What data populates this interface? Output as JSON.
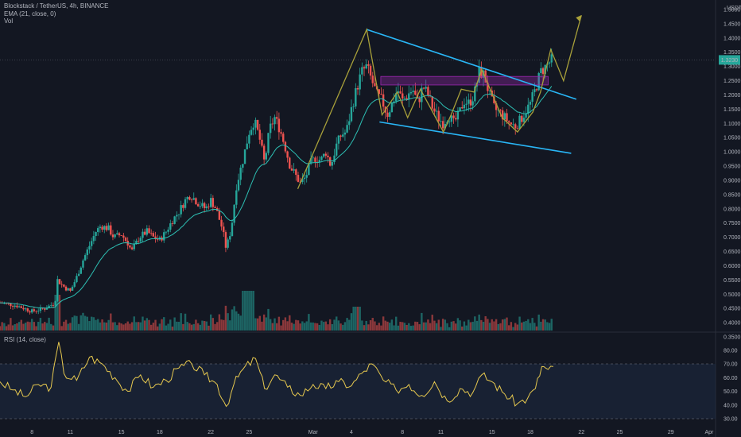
{
  "header": {
    "symbol_line": "Blockstack / TetherUS, 4h, BINANCE",
    "ema_line": "EMA (21, close, 0)",
    "vol_line": "Vol",
    "currency": "USDT",
    "last_price": "1.3230"
  },
  "rsi_panel": {
    "label": "RSI (14, close)"
  },
  "colors": {
    "background": "#131722",
    "up": "#26a69a",
    "down": "#ef5350",
    "ema": "#2dbfb3",
    "trendline": "#29b6f6",
    "pattern": "#a8a03a",
    "zone": "#9c27b0",
    "rsi": "#e6c84f",
    "rsi_band": "#1d2840"
  },
  "chart_data": [
    {
      "type": "candlestick",
      "title": "Blockstack / TetherUS, 4h, BINANCE",
      "ylim": [
        0.34,
        1.5
      ],
      "y_ticks": [
        "1.5000",
        "1.4500",
        "1.4000",
        "1.3500",
        "1.3000",
        "1.2500",
        "1.2000",
        "1.1500",
        "1.1000",
        "1.0500",
        "1.0000",
        "0.9500",
        "0.9000",
        "0.8500",
        "0.8000",
        "0.7500",
        "0.7000",
        "0.6500",
        "0.6000",
        "0.5500",
        "0.5000",
        "0.4500",
        "0.4000",
        "0.3500"
      ],
      "x_ticks": [
        "8",
        "11",
        "15",
        "18",
        "22",
        "25",
        "Mar",
        "4",
        "8",
        "11",
        "15",
        "18",
        "22",
        "25",
        "29",
        "Apr"
      ],
      "x_tick_dates": [
        -21,
        -18,
        -14,
        -11,
        -7,
        -4,
        1,
        4,
        8,
        11,
        15,
        18,
        22,
        25,
        29,
        32
      ],
      "x_range": [
        -23.5,
        32.5
      ],
      "last_day": 19.8,
      "price_path": [
        [
          -23.5,
          0.47
        ],
        [
          -22.2,
          0.46
        ],
        [
          -21.0,
          0.44
        ],
        [
          -20.0,
          0.45
        ],
        [
          -19.2,
          0.47
        ],
        [
          -19.0,
          0.55
        ],
        [
          -18.6,
          0.53
        ],
        [
          -18.0,
          0.51
        ],
        [
          -17.5,
          0.56
        ],
        [
          -17.0,
          0.62
        ],
        [
          -16.5,
          0.67
        ],
        [
          -16.0,
          0.72
        ],
        [
          -15.6,
          0.74
        ],
        [
          -15.0,
          0.73
        ],
        [
          -14.6,
          0.7
        ],
        [
          -14.0,
          0.71
        ],
        [
          -13.5,
          0.68
        ],
        [
          -13.2,
          0.65
        ],
        [
          -12.6,
          0.7
        ],
        [
          -12.0,
          0.72
        ],
        [
          -11.5,
          0.7
        ],
        [
          -11.0,
          0.69
        ],
        [
          -10.5,
          0.72
        ],
        [
          -10.0,
          0.76
        ],
        [
          -9.5,
          0.79
        ],
        [
          -9.0,
          0.83
        ],
        [
          -8.6,
          0.85
        ],
        [
          -8.0,
          0.82
        ],
        [
          -7.4,
          0.8
        ],
        [
          -7.0,
          0.83
        ],
        [
          -6.6,
          0.8
        ],
        [
          -6.1,
          0.73
        ],
        [
          -5.8,
          0.66
        ],
        [
          -5.4,
          0.73
        ],
        [
          -5.0,
          0.88
        ],
        [
          -4.5,
          0.97
        ],
        [
          -4.0,
          1.07
        ],
        [
          -3.6,
          1.11
        ],
        [
          -3.2,
          1.05
        ],
        [
          -2.8,
          0.96
        ],
        [
          -2.4,
          1.08
        ],
        [
          -2.0,
          1.12
        ],
        [
          -1.6,
          1.08
        ],
        [
          -1.2,
          1.02
        ],
        [
          -0.8,
          0.95
        ],
        [
          -0.4,
          0.92
        ],
        [
          0.0,
          0.89
        ],
        [
          0.4,
          0.91
        ],
        [
          0.8,
          0.96
        ],
        [
          1.2,
          0.98
        ],
        [
          1.6,
          0.97
        ],
        [
          2.0,
          1.0
        ],
        [
          2.4,
          0.95
        ],
        [
          2.8,
          1.02
        ],
        [
          3.2,
          1.06
        ],
        [
          3.6,
          1.07
        ],
        [
          4.0,
          1.15
        ],
        [
          4.4,
          1.22
        ],
        [
          4.8,
          1.28
        ],
        [
          5.2,
          1.3
        ],
        [
          5.6,
          1.25
        ],
        [
          6.0,
          1.2
        ],
        [
          6.4,
          1.18
        ],
        [
          6.8,
          1.13
        ],
        [
          7.2,
          1.17
        ],
        [
          7.6,
          1.22
        ],
        [
          8.0,
          1.18
        ],
        [
          8.4,
          1.2
        ],
        [
          8.8,
          1.22
        ],
        [
          9.2,
          1.17
        ],
        [
          9.6,
          1.23
        ],
        [
          10.0,
          1.2
        ],
        [
          10.4,
          1.15
        ],
        [
          10.8,
          1.12
        ],
        [
          11.2,
          1.1
        ],
        [
          11.6,
          1.13
        ],
        [
          12.0,
          1.1
        ],
        [
          12.4,
          1.13
        ],
        [
          12.8,
          1.18
        ],
        [
          13.2,
          1.17
        ],
        [
          13.6,
          1.2
        ],
        [
          14.0,
          1.28
        ],
        [
          14.4,
          1.27
        ],
        [
          14.8,
          1.2
        ],
        [
          15.2,
          1.15
        ],
        [
          15.6,
          1.14
        ],
        [
          16.0,
          1.12
        ],
        [
          16.4,
          1.1
        ],
        [
          16.8,
          1.09
        ],
        [
          17.2,
          1.11
        ],
        [
          17.6,
          1.14
        ],
        [
          18.0,
          1.17
        ],
        [
          18.4,
          1.22
        ],
        [
          18.8,
          1.28
        ],
        [
          19.2,
          1.3
        ],
        [
          19.6,
          1.32
        ],
        [
          19.8,
          1.323
        ]
      ]
    },
    {
      "type": "line",
      "title": "RSI (14, close)",
      "ylim": [
        28,
        93
      ],
      "y_ticks": [
        "80.00",
        "70.00",
        "60.00",
        "50.00",
        "40.00",
        "30.00"
      ],
      "bands": [
        70,
        30
      ],
      "x": [
        -23.5,
        -22.5,
        -21.5,
        -20.5,
        -19.5,
        -18.9,
        -18.5,
        -17.5,
        -16.5,
        -15.5,
        -14.5,
        -13.5,
        -12.5,
        -11.5,
        -10.5,
        -9.5,
        -8.5,
        -7.5,
        -6.5,
        -5.8,
        -5.2,
        -4.5,
        -3.5,
        -2.8,
        -2.0,
        -1.0,
        0.0,
        1.0,
        2.0,
        3.0,
        4.0,
        4.8,
        5.6,
        6.5,
        7.5,
        8.5,
        9.5,
        10.5,
        11.5,
        12.5,
        13.5,
        14.2,
        15.0,
        16.0,
        17.0,
        17.8,
        18.4,
        18.9,
        19.4,
        19.8
      ],
      "values": [
        57,
        51,
        46,
        55,
        53,
        86,
        63,
        58,
        75,
        70,
        60,
        50,
        62,
        53,
        58,
        67,
        70,
        62,
        55,
        39,
        55,
        66,
        74,
        52,
        62,
        53,
        47,
        55,
        52,
        57,
        54,
        63,
        70,
        58,
        51,
        55,
        47,
        57,
        43,
        52,
        49,
        62,
        57,
        48,
        41,
        45,
        52,
        68,
        66,
        68
      ]
    }
  ]
}
